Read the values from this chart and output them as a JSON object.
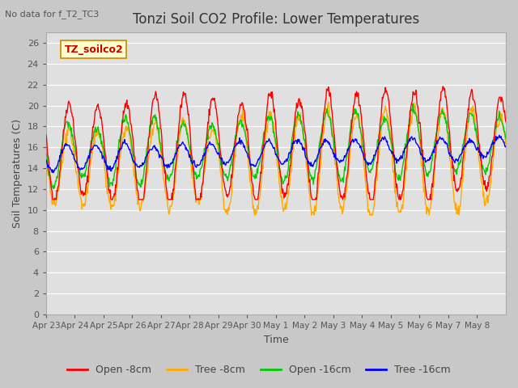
{
  "title": "Tonzi Soil CO2 Profile: Lower Temperatures",
  "subtitle": "No data for f_T2_TC3",
  "ylabel": "Soil Temperatures (C)",
  "xlabel": "Time",
  "ylim": [
    0,
    27
  ],
  "yticks": [
    0,
    2,
    4,
    6,
    8,
    10,
    12,
    14,
    16,
    18,
    20,
    22,
    24,
    26
  ],
  "legend_label": "TZ_soilco2",
  "series_labels": [
    "Open -8cm",
    "Tree -8cm",
    "Open -16cm",
    "Tree -16cm"
  ],
  "series_colors": [
    "#ff0000",
    "#ffaa00",
    "#00cc00",
    "#0000ff"
  ],
  "fig_bg_color": "#c8c8c8",
  "plot_bg_color": "#e0e0e0",
  "xtick_labels": [
    "Apr 23",
    "Apr 24",
    "Apr 25",
    "Apr 26",
    "Apr 27",
    "Apr 28",
    "Apr 29",
    "Apr 30",
    "May 1",
    "May 2",
    "May 3",
    "May 4",
    "May 5",
    "May 6",
    "May 7",
    "May 8"
  ],
  "n_days": 16,
  "pts_per_day": 48
}
